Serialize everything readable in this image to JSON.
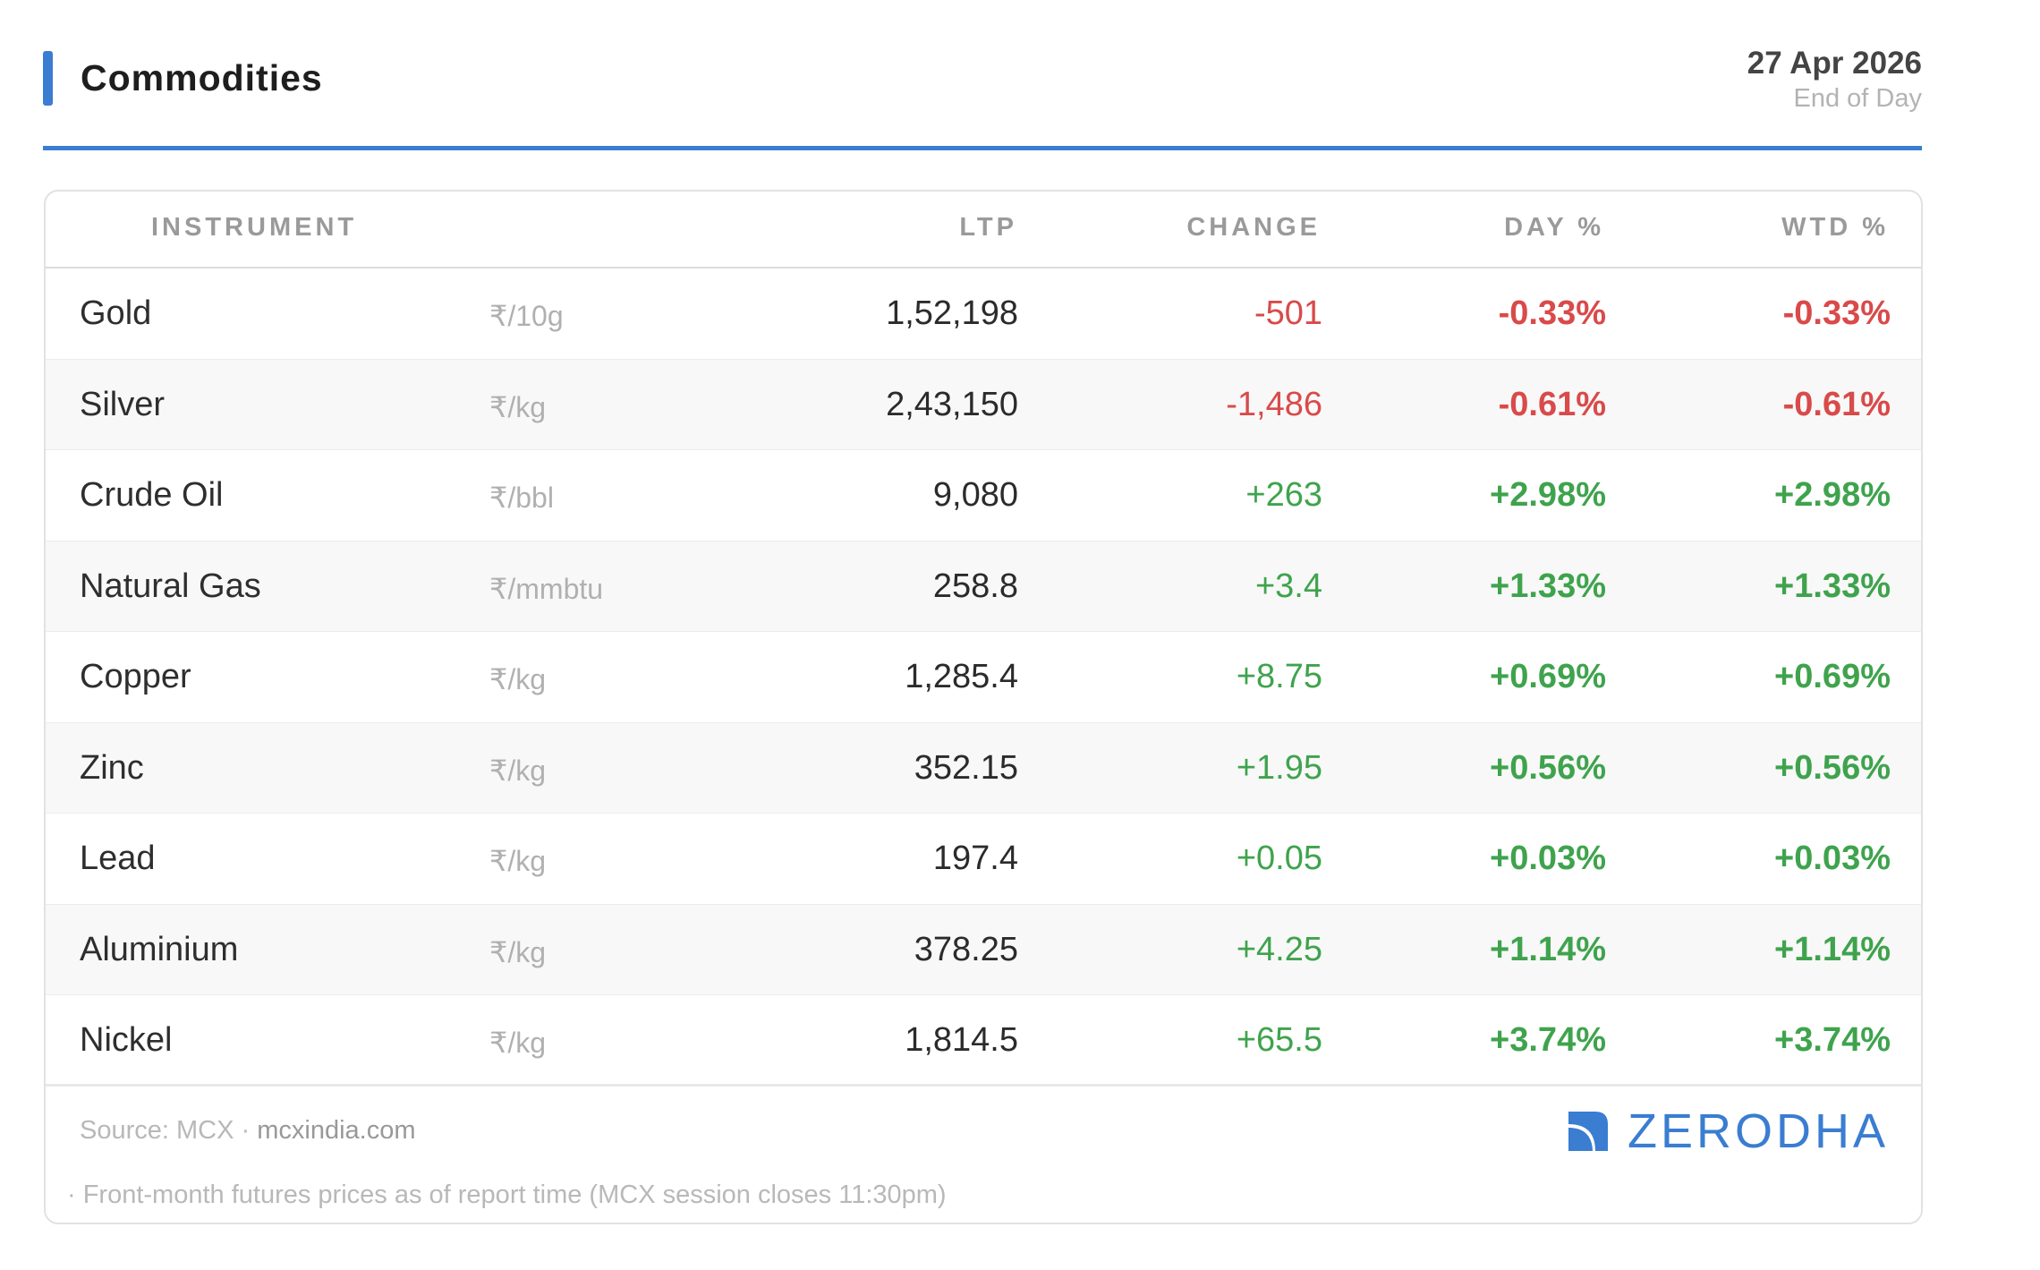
{
  "header": {
    "title": "Commodities",
    "date": "27 Apr 2026",
    "date_sub": "End of Day"
  },
  "colors": {
    "accent": "#3a7dd1",
    "negative": "#d94a4a",
    "positive": "#3fa34d"
  },
  "table": {
    "columns": {
      "instrument": "INSTRUMENT",
      "ltp": "LTP",
      "change": "CHANGE",
      "day": "DAY %",
      "wtd": "WTD %"
    },
    "rows": [
      {
        "name": "Gold",
        "unit": "₹/10g",
        "ltp": "1,52,198",
        "change": "-501",
        "day": "-0.33%",
        "wtd": "-0.33%",
        "direction": "neg"
      },
      {
        "name": "Silver",
        "unit": "₹/kg",
        "ltp": "2,43,150",
        "change": "-1,486",
        "day": "-0.61%",
        "wtd": "-0.61%",
        "direction": "neg"
      },
      {
        "name": "Crude Oil",
        "unit": "₹/bbl",
        "ltp": "9,080",
        "change": "+263",
        "day": "+2.98%",
        "wtd": "+2.98%",
        "direction": "pos"
      },
      {
        "name": "Natural Gas",
        "unit": "₹/mmbtu",
        "ltp": "258.8",
        "change": "+3.4",
        "day": "+1.33%",
        "wtd": "+1.33%",
        "direction": "pos"
      },
      {
        "name": "Copper",
        "unit": "₹/kg",
        "ltp": "1,285.4",
        "change": "+8.75",
        "day": "+0.69%",
        "wtd": "+0.69%",
        "direction": "pos"
      },
      {
        "name": "Zinc",
        "unit": "₹/kg",
        "ltp": "352.15",
        "change": "+1.95",
        "day": "+0.56%",
        "wtd": "+0.56%",
        "direction": "pos"
      },
      {
        "name": "Lead",
        "unit": "₹/kg",
        "ltp": "197.4",
        "change": "+0.05",
        "day": "+0.03%",
        "wtd": "+0.03%",
        "direction": "pos"
      },
      {
        "name": "Aluminium",
        "unit": "₹/kg",
        "ltp": "378.25",
        "change": "+4.25",
        "day": "+1.14%",
        "wtd": "+1.14%",
        "direction": "pos"
      },
      {
        "name": "Nickel",
        "unit": "₹/kg",
        "ltp": "1,814.5",
        "change": "+65.5",
        "day": "+3.74%",
        "wtd": "+3.74%",
        "direction": "pos"
      }
    ]
  },
  "footer": {
    "source_prefix": "Source: MCX · ",
    "source_link": "mcxindia.com",
    "note": "· Front-month futures prices as of report time (MCX session closes 11:30pm)",
    "logo_text": "ZERODHA",
    "logo_icon": "zerodha-logo-icon"
  }
}
